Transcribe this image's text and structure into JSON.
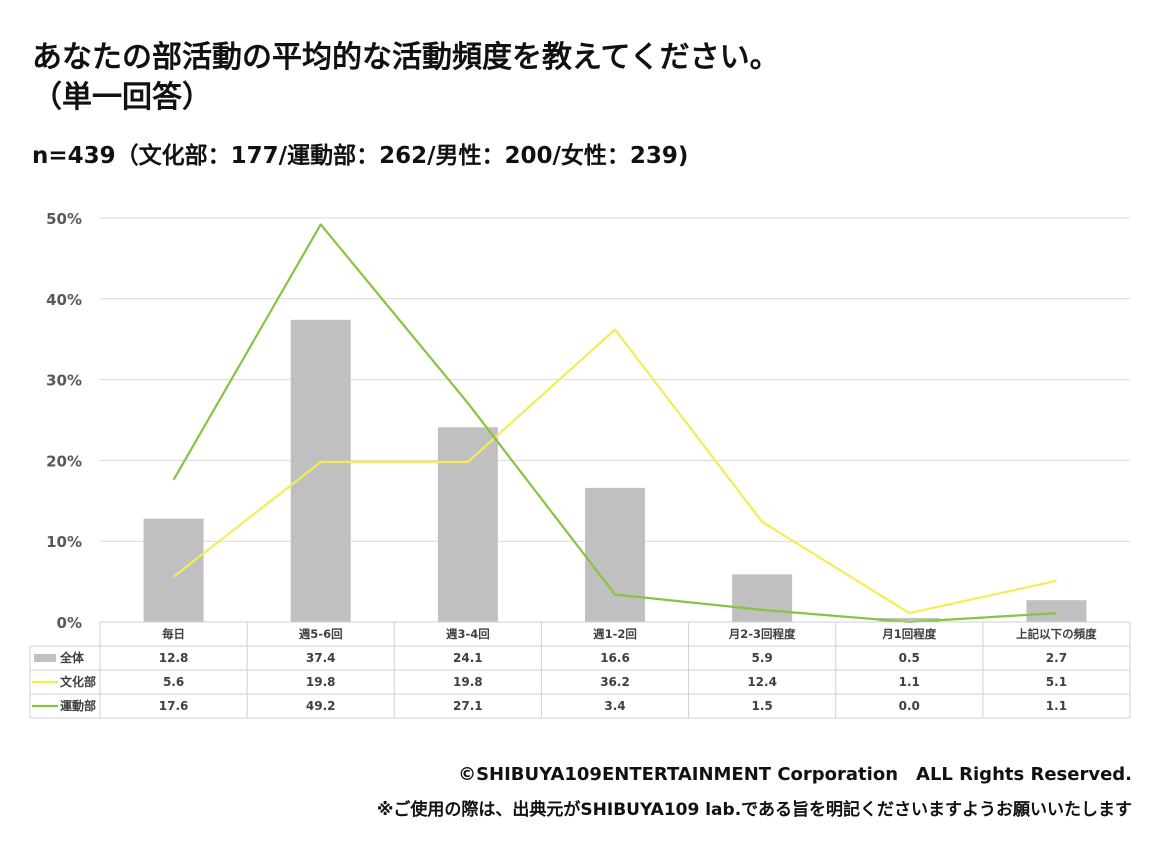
{
  "header": {
    "title_line1": "あなたの部活動の平均的な活動頻度を教えてください。",
    "title_line2": "（単一回答）",
    "sample": "n=439（文化部：177/運動部：262/男性：200/女性：239)"
  },
  "footer": {
    "copyright": "©SHIBUYA109ENTERTAINMENT Corporation　ALL Rights Reserved.",
    "note": "※ご使用の際は、出典元がSHIBUYA109 lab.である旨を明記くださいますようお願いいたします"
  },
  "chart_data": {
    "type": "bar",
    "title": "あなたの部活動の平均的な活動頻度を教えてください。（単一回答）",
    "categories": [
      "毎日",
      "週5-6回",
      "週3-4回",
      "週1-2回",
      "月2-3回程度",
      "月1回程度",
      "上記以下の頻度"
    ],
    "ylim": [
      0,
      50
    ],
    "yticks": [
      "0%",
      "10%",
      "20%",
      "30%",
      "40%",
      "50%"
    ],
    "grid": true,
    "legend": "data-table",
    "series": [
      {
        "name": "全体",
        "kind": "bar",
        "color": "#c0c0c0",
        "values": [
          12.8,
          37.4,
          24.1,
          16.6,
          5.9,
          0.5,
          2.7
        ]
      },
      {
        "name": "文化部",
        "kind": "line",
        "color": "#f5ec55",
        "values": [
          5.6,
          19.8,
          19.8,
          36.2,
          12.4,
          1.1,
          5.1
        ]
      },
      {
        "name": "運動部",
        "kind": "line",
        "color": "#86c53f",
        "values": [
          17.6,
          49.2,
          27.1,
          3.4,
          1.5,
          0.0,
          1.1
        ]
      }
    ]
  }
}
